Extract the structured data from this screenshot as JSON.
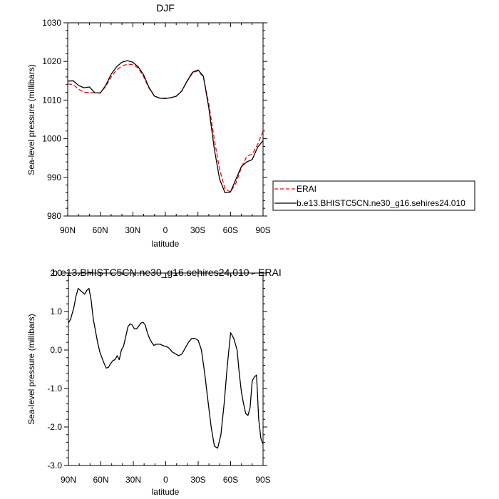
{
  "chart_data": [
    {
      "type": "line",
      "title": "DJF",
      "xlabel": "latitude",
      "ylabel": "Sea-level pressure (millibars)",
      "xlim": [
        90,
        -90
      ],
      "ylim": [
        980,
        1030
      ],
      "x_tick_values": [
        90,
        60,
        30,
        0,
        -30,
        -60,
        -90
      ],
      "x_tick_labels": [
        "90N",
        "60N",
        "30N",
        "0",
        "30S",
        "60S",
        "90S"
      ],
      "y_tick_values": [
        980,
        990,
        1000,
        1010,
        1020,
        1030
      ],
      "y_tick_labels": [
        "980",
        "990",
        "1000",
        "1010",
        "1020",
        "1030"
      ],
      "legend": {
        "placement": "right"
      },
      "series": [
        {
          "name": "ERAI",
          "color": "#ff0000",
          "dash": true,
          "x": [
            90,
            85,
            80,
            75,
            70,
            65,
            60,
            55,
            50,
            45,
            40,
            35,
            30,
            25,
            20,
            15,
            10,
            5,
            0,
            -5,
            -10,
            -15,
            -20,
            -25,
            -30,
            -35,
            -40,
            -45,
            -50,
            -55,
            -60,
            -65,
            -70,
            -75,
            -80,
            -85,
            -90
          ],
          "values": [
            1014.2,
            1014.0,
            1012.8,
            1012.0,
            1012.0,
            1011.9,
            1011.9,
            1013.5,
            1016.0,
            1017.8,
            1018.8,
            1019.3,
            1019.2,
            1018.3,
            1016.0,
            1013.0,
            1011.0,
            1010.5,
            1010.5,
            1010.6,
            1011.0,
            1012.3,
            1014.8,
            1017.0,
            1017.6,
            1016.0,
            1009.0,
            1000.0,
            992.0,
            987.0,
            986.2,
            988.5,
            992.5,
            995.5,
            996.0,
            998.5,
            1002.0
          ]
        },
        {
          "name": "b.e13.BHISTC5CN.ne30_g16.sehires24.010",
          "color": "#000000",
          "dash": false,
          "x": [
            90,
            85,
            80,
            75,
            70,
            65,
            60,
            55,
            50,
            45,
            40,
            35,
            30,
            25,
            20,
            15,
            10,
            5,
            0,
            -5,
            -10,
            -15,
            -20,
            -25,
            -30,
            -35,
            -40,
            -45,
            -50,
            -55,
            -60,
            -65,
            -70,
            -75,
            -80,
            -85,
            -90
          ],
          "values": [
            1014.9,
            1015.0,
            1013.8,
            1013.2,
            1013.4,
            1011.9,
            1011.8,
            1013.8,
            1016.7,
            1018.6,
            1019.8,
            1020.2,
            1019.8,
            1018.6,
            1016.5,
            1013.2,
            1011.0,
            1010.5,
            1010.4,
            1010.6,
            1011.0,
            1012.3,
            1014.9,
            1017.2,
            1017.8,
            1016.2,
            1008.0,
            997.5,
            989.5,
            986.0,
            986.2,
            989.5,
            992.8,
            994.0,
            994.6,
            997.8,
            999.5
          ]
        }
      ]
    },
    {
      "type": "line",
      "title": "b.e13.BHISTC5CN.ne30_g16.sehires24.010 - ERAI",
      "xlabel": "latitude",
      "ylabel": "Sea-level pressure (millibars)",
      "xlim": [
        90,
        -90
      ],
      "ylim": [
        -3.0,
        2.0
      ],
      "x_tick_values": [
        90,
        60,
        30,
        0,
        -30,
        -60,
        -90
      ],
      "x_tick_labels": [
        "90N",
        "60N",
        "30N",
        "0",
        "30S",
        "60S",
        "90S"
      ],
      "y_tick_values": [
        2.0,
        1.0,
        0.0,
        -1.0,
        -2.0,
        -3.0
      ],
      "y_tick_labels": [
        "2.0",
        "1.0",
        "0.0",
        "-1.0",
        "-2.0",
        "-3.0"
      ],
      "series": [
        {
          "color": "#000000",
          "x": [
            90,
            88,
            85,
            83,
            81,
            79,
            77,
            75,
            73,
            71,
            69,
            67,
            65,
            63,
            61,
            59,
            57,
            55,
            53,
            51,
            49,
            47,
            45,
            43,
            41,
            39,
            37,
            35,
            33,
            31,
            29,
            27,
            25,
            23,
            21,
            19,
            17,
            15,
            13,
            11,
            9,
            7,
            5,
            3,
            1,
            0,
            -3,
            -6,
            -9,
            -12,
            -15,
            -18,
            -21,
            -24,
            -27,
            -30,
            -33,
            -36,
            -39,
            -42,
            -45,
            -48,
            -51,
            -54,
            -57,
            -60,
            -63,
            -66,
            -68,
            -70,
            -72,
            -74,
            -76,
            -78,
            -80,
            -82,
            -84,
            -86,
            -88,
            -90
          ],
          "values": [
            0.7,
            0.8,
            1.1,
            1.4,
            1.6,
            1.55,
            1.5,
            1.45,
            1.55,
            1.6,
            1.3,
            0.8,
            0.5,
            0.2,
            -0.05,
            -0.2,
            -0.35,
            -0.47,
            -0.45,
            -0.35,
            -0.28,
            -0.25,
            -0.15,
            -0.25,
            0.0,
            0.1,
            0.35,
            0.6,
            0.68,
            0.65,
            0.55,
            0.55,
            0.62,
            0.7,
            0.72,
            0.65,
            0.45,
            0.3,
            0.2,
            0.12,
            0.15,
            0.15,
            0.15,
            0.12,
            0.1,
            0.1,
            0.05,
            -0.05,
            -0.1,
            -0.15,
            -0.1,
            0.05,
            0.2,
            0.3,
            0.3,
            0.25,
            0.0,
            -0.6,
            -1.3,
            -2.0,
            -2.5,
            -2.55,
            -2.2,
            -1.4,
            -0.4,
            0.45,
            0.3,
            0.0,
            -0.6,
            -1.1,
            -1.4,
            -1.65,
            -1.7,
            -1.5,
            -0.8,
            -0.7,
            -0.65,
            -1.8,
            -2.3,
            -2.45
          ]
        }
      ]
    }
  ]
}
